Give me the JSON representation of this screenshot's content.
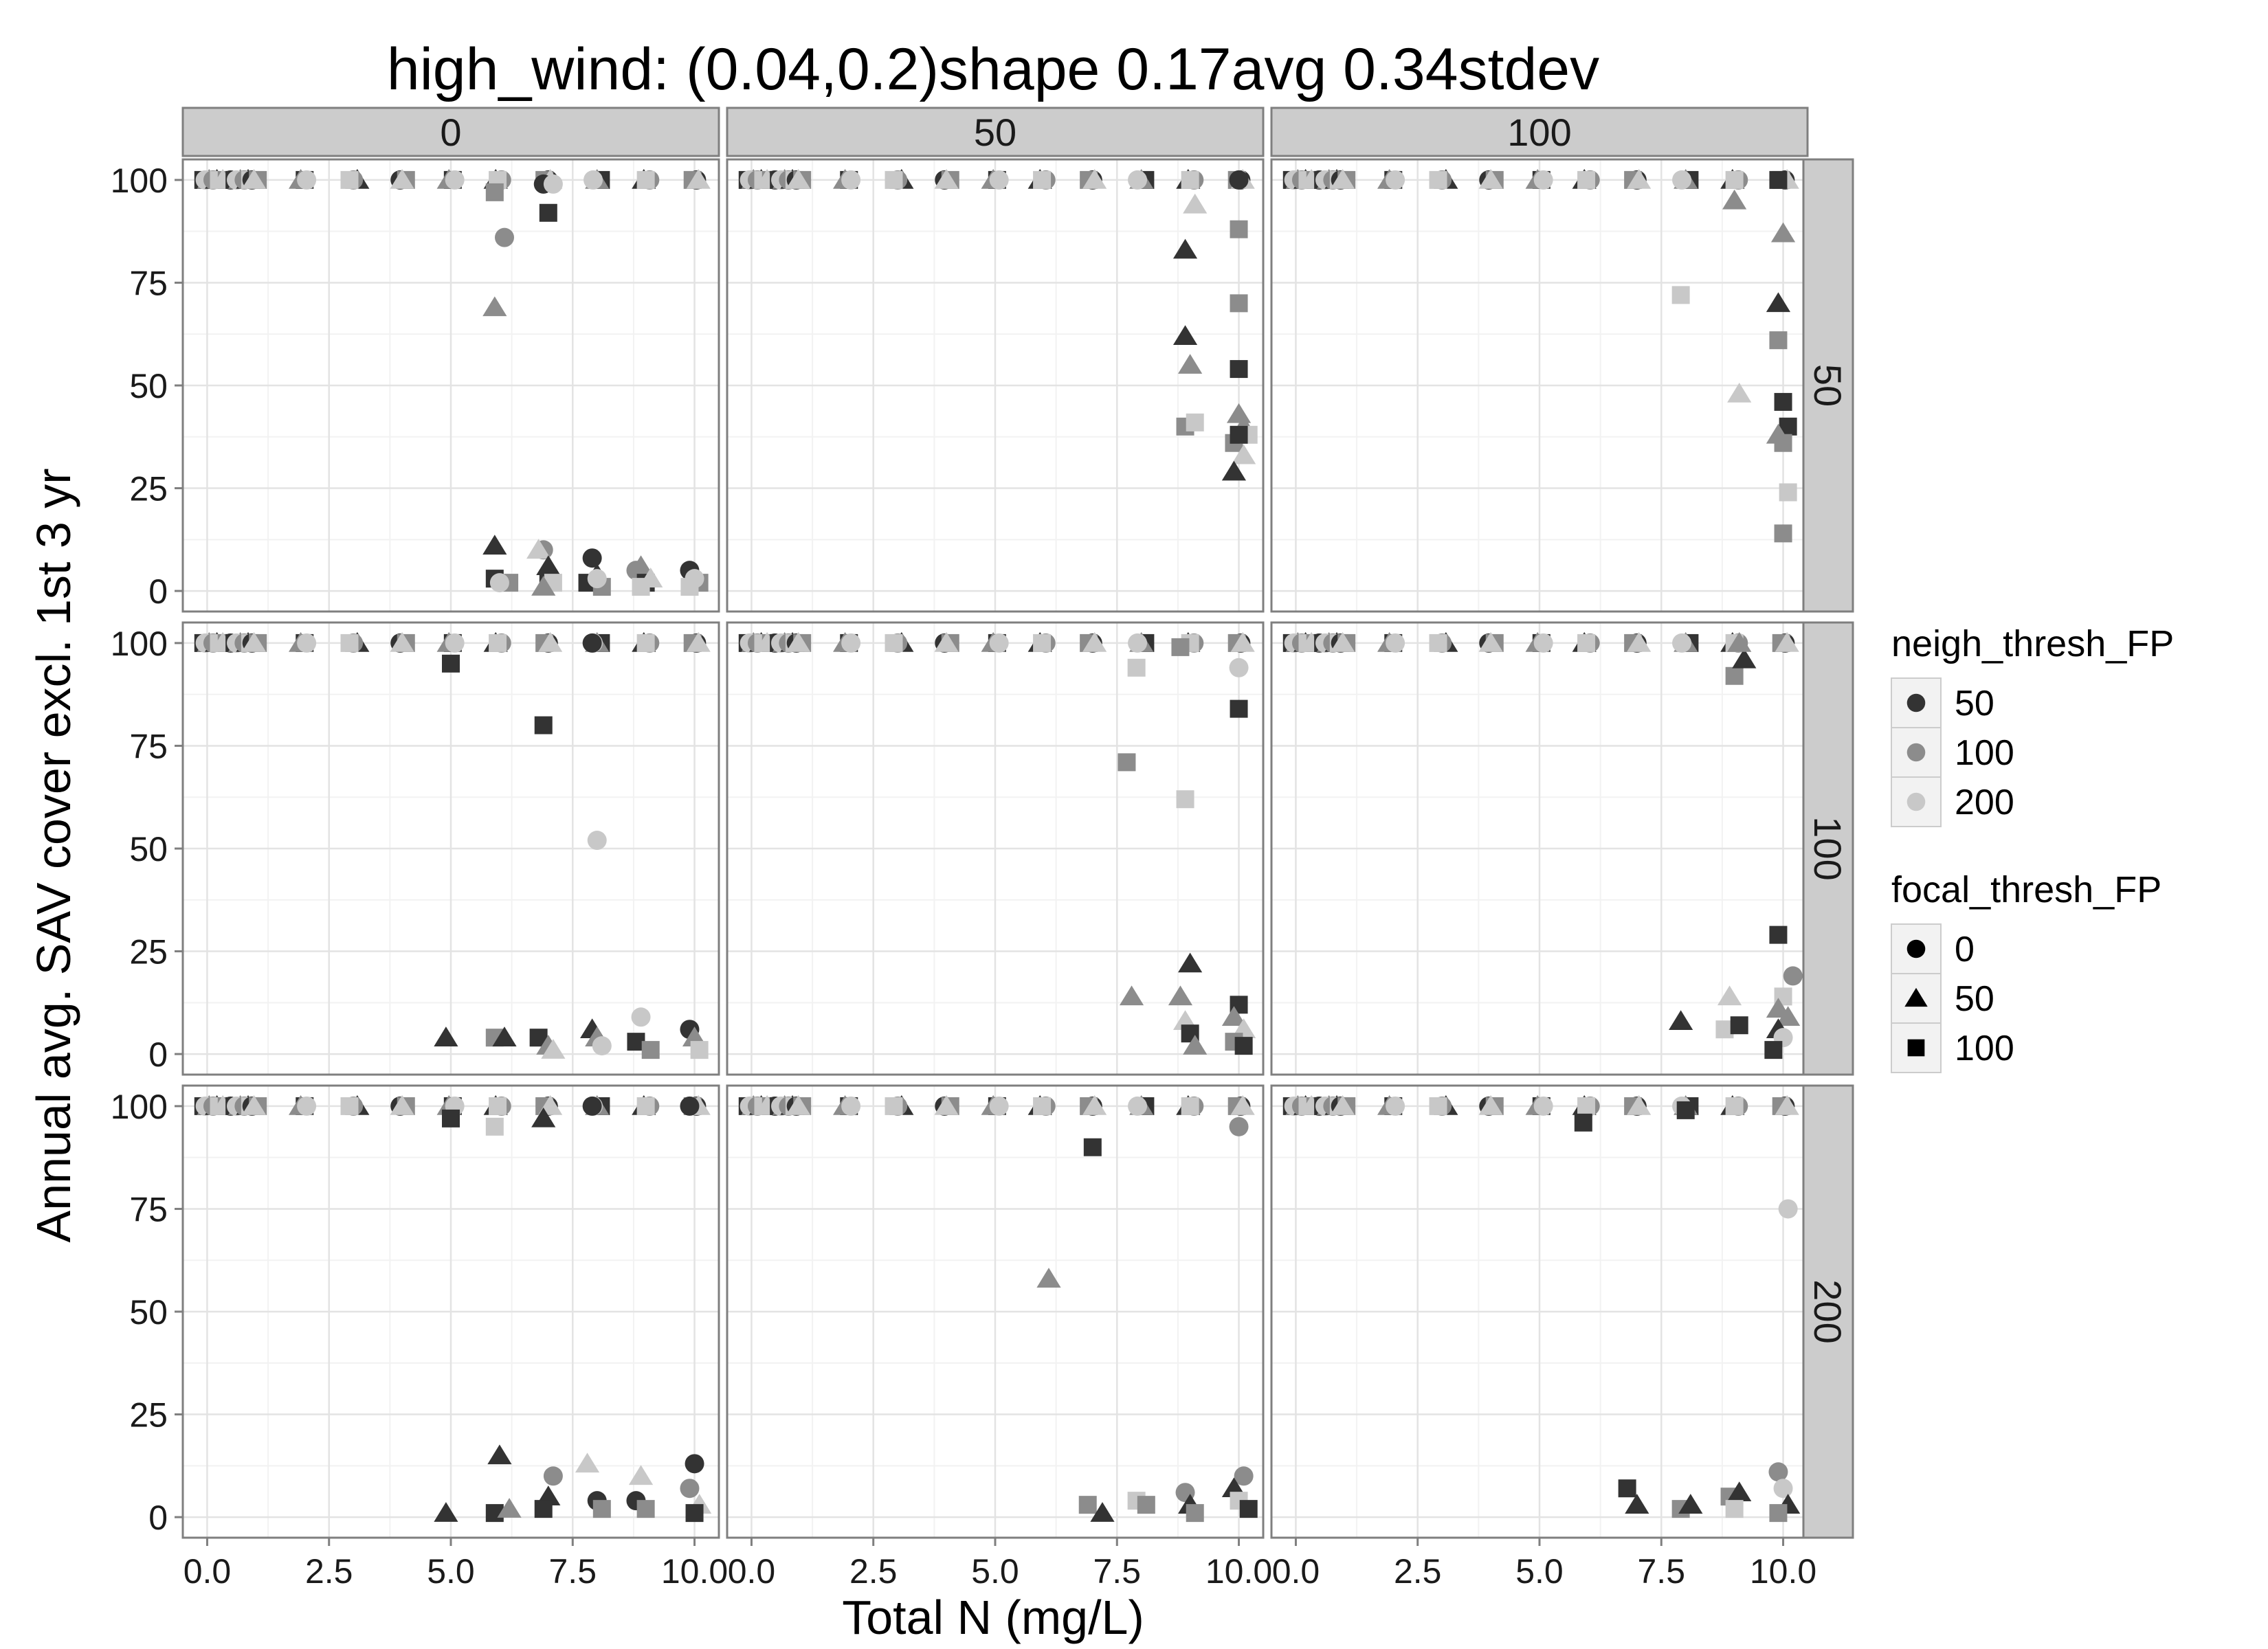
{
  "chart_data": {
    "type": "scatter",
    "title": "high_wind: (0.04,0.2)shape 0.17avg 0.34stdev",
    "xlabel": "Total N (mg/L)",
    "ylabel": "Annual avg. SAV cover excl. 1st 3 yr",
    "xlim": [
      -0.5,
      10.5
    ],
    "ylim": [
      -5,
      105
    ],
    "x_ticks": [
      0,
      2.5,
      5,
      7.5,
      10
    ],
    "x_tick_labels": [
      "0.0",
      "2.5",
      "5.0",
      "7.5",
      "10.0"
    ],
    "y_ticks": [
      0,
      25,
      50,
      75,
      100
    ],
    "y_tick_labels": [
      "0",
      "25",
      "50",
      "75",
      "100"
    ],
    "grid": true,
    "facet_cols": [
      "0",
      "50",
      "100"
    ],
    "facet_rows": [
      "50",
      "100",
      "200"
    ],
    "legends": [
      {
        "title": "neigh_thresh_FP",
        "items": [
          {
            "label": "50",
            "color": "#333333",
            "shape": "circle"
          },
          {
            "label": "100",
            "color": "#8c8c8c",
            "shape": "circle"
          },
          {
            "label": "200",
            "color": "#c8c8c8",
            "shape": "circle"
          }
        ]
      },
      {
        "title": "focal_thresh_FP",
        "items": [
          {
            "label": "0",
            "color": "#000000",
            "shape": "circle"
          },
          {
            "label": "50",
            "color": "#000000",
            "shape": "triangle"
          },
          {
            "label": "100",
            "color": "#000000",
            "shape": "square"
          }
        ]
      }
    ],
    "series_colors": {
      "n50": "#333333",
      "n100": "#8c8c8c",
      "n200": "#c8c8c8"
    },
    "baseline_x": [
      0,
      0.2,
      0.4,
      0.6,
      0.8,
      1,
      2,
      3,
      4,
      5,
      6,
      7,
      8,
      9,
      10
    ],
    "panels": [
      {
        "row": "50",
        "col": "0",
        "points": [
          [
            5.9,
            97,
            "n100",
            "square"
          ],
          [
            6.1,
            86,
            "n100",
            "circle"
          ],
          [
            5.9,
            69,
            "n100",
            "triangle"
          ],
          [
            7.0,
            92,
            "n50",
            "square"
          ],
          [
            6.9,
            99,
            "n50",
            "circle"
          ],
          [
            7.1,
            99,
            "n200",
            "circle"
          ],
          [
            5.9,
            11,
            "n50",
            "triangle"
          ],
          [
            5.9,
            3,
            "n50",
            "square"
          ],
          [
            6.2,
            2,
            "n100",
            "square"
          ],
          [
            6.0,
            2,
            "n200",
            "circle"
          ],
          [
            6.9,
            10,
            "n100",
            "circle"
          ],
          [
            6.8,
            10,
            "n200",
            "triangle"
          ],
          [
            7.0,
            6,
            "n50",
            "triangle"
          ],
          [
            7.0,
            3,
            "n50",
            "square"
          ],
          [
            7.1,
            2,
            "n200",
            "square"
          ],
          [
            6.9,
            1,
            "n100",
            "triangle"
          ],
          [
            7.9,
            8,
            "n50",
            "circle"
          ],
          [
            8.0,
            4,
            "n50",
            "triangle"
          ],
          [
            7.8,
            2,
            "n50",
            "square"
          ],
          [
            8.1,
            1,
            "n100",
            "square"
          ],
          [
            8.0,
            3,
            "n200",
            "circle"
          ],
          [
            8.9,
            6,
            "n100",
            "triangle"
          ],
          [
            8.8,
            5,
            "n100",
            "circle"
          ],
          [
            9.0,
            2,
            "n50",
            "square"
          ],
          [
            9.1,
            3,
            "n200",
            "triangle"
          ],
          [
            8.9,
            1,
            "n200",
            "square"
          ],
          [
            9.9,
            5,
            "n50",
            "circle"
          ],
          [
            10.0,
            4,
            "n50",
            "triangle"
          ],
          [
            10.1,
            2,
            "n100",
            "square"
          ],
          [
            9.9,
            1,
            "n200",
            "square"
          ],
          [
            10.0,
            3,
            "n200",
            "circle"
          ]
        ]
      },
      {
        "row": "50",
        "col": "50",
        "points": [
          [
            8.9,
            83,
            "n50",
            "triangle"
          ],
          [
            9.1,
            94,
            "n200",
            "triangle"
          ],
          [
            10.0,
            100,
            "n50",
            "circle"
          ],
          [
            10.0,
            88,
            "n100",
            "square"
          ],
          [
            10.0,
            70,
            "n100",
            "square"
          ],
          [
            8.9,
            62,
            "n50",
            "triangle"
          ],
          [
            9.0,
            55,
            "n100",
            "triangle"
          ],
          [
            10.0,
            54,
            "n50",
            "square"
          ],
          [
            8.9,
            40,
            "n100",
            "square"
          ],
          [
            9.1,
            41,
            "n200",
            "square"
          ],
          [
            10.0,
            43,
            "n100",
            "triangle"
          ],
          [
            10.1,
            40,
            "n100",
            "triangle"
          ],
          [
            9.9,
            36,
            "n100",
            "square"
          ],
          [
            10.2,
            38,
            "n200",
            "square"
          ],
          [
            10.1,
            33,
            "n200",
            "triangle"
          ],
          [
            9.9,
            29,
            "n50",
            "triangle"
          ],
          [
            10.0,
            38,
            "n50",
            "square"
          ]
        ]
      },
      {
        "row": "50",
        "col": "100",
        "points": [
          [
            9.0,
            95,
            "n100",
            "triangle"
          ],
          [
            9.9,
            100,
            "n50",
            "square"
          ],
          [
            10.0,
            87,
            "n100",
            "triangle"
          ],
          [
            7.9,
            72,
            "n200",
            "square"
          ],
          [
            9.9,
            70,
            "n50",
            "triangle"
          ],
          [
            9.9,
            61,
            "n100",
            "square"
          ],
          [
            9.1,
            48,
            "n200",
            "triangle"
          ],
          [
            10.0,
            46,
            "n50",
            "square"
          ],
          [
            10.1,
            40,
            "n50",
            "square"
          ],
          [
            9.9,
            38,
            "n100",
            "triangle"
          ],
          [
            10.0,
            36,
            "n100",
            "square"
          ],
          [
            10.1,
            24,
            "n200",
            "square"
          ],
          [
            10.0,
            14,
            "n100",
            "square"
          ]
        ]
      },
      {
        "row": "100",
        "col": "0",
        "points": [
          [
            5.0,
            95,
            "n50",
            "square"
          ],
          [
            6.9,
            80,
            "n50",
            "square"
          ],
          [
            8.0,
            52,
            "n200",
            "circle"
          ],
          [
            7.9,
            100,
            "n50",
            "circle"
          ],
          [
            4.9,
            4,
            "n50",
            "triangle"
          ],
          [
            5.9,
            4,
            "n100",
            "square"
          ],
          [
            6.1,
            4,
            "n50",
            "triangle"
          ],
          [
            6.8,
            4,
            "n50",
            "square"
          ],
          [
            7.0,
            2,
            "n100",
            "triangle"
          ],
          [
            7.1,
            1,
            "n200",
            "triangle"
          ],
          [
            7.9,
            6,
            "n50",
            "triangle"
          ],
          [
            8.0,
            4,
            "n100",
            "triangle"
          ],
          [
            8.1,
            2,
            "n200",
            "circle"
          ],
          [
            8.9,
            9,
            "n200",
            "circle"
          ],
          [
            8.8,
            3,
            "n50",
            "square"
          ],
          [
            9.1,
            1,
            "n100",
            "square"
          ],
          [
            9.9,
            6,
            "n50",
            "circle"
          ],
          [
            10.0,
            4,
            "n100",
            "triangle"
          ],
          [
            10.1,
            1,
            "n200",
            "square"
          ]
        ]
      },
      {
        "row": "100",
        "col": "50",
        "points": [
          [
            7.9,
            94,
            "n200",
            "square"
          ],
          [
            8.8,
            99,
            "n100",
            "square"
          ],
          [
            10.0,
            94,
            "n200",
            "circle"
          ],
          [
            10.0,
            84,
            "n50",
            "square"
          ],
          [
            7.7,
            71,
            "n100",
            "square"
          ],
          [
            8.9,
            62,
            "n200",
            "square"
          ],
          [
            7.8,
            14,
            "n100",
            "triangle"
          ],
          [
            9.0,
            22,
            "n50",
            "triangle"
          ],
          [
            8.8,
            14,
            "n100",
            "triangle"
          ],
          [
            8.9,
            8,
            "n200",
            "triangle"
          ],
          [
            9.0,
            5,
            "n50",
            "square"
          ],
          [
            9.1,
            2,
            "n100",
            "triangle"
          ],
          [
            10.0,
            12,
            "n50",
            "square"
          ],
          [
            9.9,
            9,
            "n100",
            "triangle"
          ],
          [
            10.1,
            6,
            "n200",
            "triangle"
          ],
          [
            9.9,
            3,
            "n100",
            "square"
          ],
          [
            10.1,
            2,
            "n50",
            "square"
          ]
        ]
      },
      {
        "row": "100",
        "col": "100",
        "points": [
          [
            9.0,
            92,
            "n100",
            "square"
          ],
          [
            9.2,
            96,
            "n50",
            "triangle"
          ],
          [
            9.1,
            100,
            "n100",
            "triangle"
          ],
          [
            9.9,
            29,
            "n50",
            "square"
          ],
          [
            10.2,
            19,
            "n100",
            "circle"
          ],
          [
            7.9,
            8,
            "n50",
            "triangle"
          ],
          [
            8.9,
            14,
            "n200",
            "triangle"
          ],
          [
            8.8,
            6,
            "n200",
            "square"
          ],
          [
            9.1,
            7,
            "n50",
            "square"
          ],
          [
            10.0,
            14,
            "n200",
            "square"
          ],
          [
            9.9,
            11,
            "n100",
            "triangle"
          ],
          [
            10.1,
            9,
            "n100",
            "triangle"
          ],
          [
            9.9,
            6,
            "n50",
            "triangle"
          ],
          [
            10.0,
            4,
            "n200",
            "circle"
          ],
          [
            9.8,
            1,
            "n50",
            "square"
          ]
        ]
      },
      {
        "row": "200",
        "col": "0",
        "points": [
          [
            5.0,
            97,
            "n50",
            "square"
          ],
          [
            5.9,
            95,
            "n200",
            "square"
          ],
          [
            6.9,
            97,
            "n50",
            "triangle"
          ],
          [
            7.9,
            100,
            "n50",
            "circle"
          ],
          [
            9.9,
            100,
            "n50",
            "circle"
          ],
          [
            4.9,
            1,
            "n50",
            "triangle"
          ],
          [
            6.0,
            15,
            "n50",
            "triangle"
          ],
          [
            5.9,
            1,
            "n50",
            "square"
          ],
          [
            6.2,
            2,
            "n100",
            "triangle"
          ],
          [
            7.1,
            10,
            "n100",
            "circle"
          ],
          [
            7.0,
            5,
            "n50",
            "triangle"
          ],
          [
            6.9,
            2,
            "n50",
            "square"
          ],
          [
            7.8,
            13,
            "n200",
            "triangle"
          ],
          [
            8.0,
            4,
            "n50",
            "circle"
          ],
          [
            8.1,
            2,
            "n100",
            "square"
          ],
          [
            8.9,
            10,
            "n200",
            "triangle"
          ],
          [
            8.8,
            4,
            "n50",
            "circle"
          ],
          [
            9.0,
            2,
            "n100",
            "square"
          ],
          [
            10.0,
            13,
            "n50",
            "circle"
          ],
          [
            9.9,
            7,
            "n100",
            "circle"
          ],
          [
            10.1,
            3,
            "n200",
            "triangle"
          ],
          [
            10.0,
            1,
            "n50",
            "square"
          ]
        ]
      },
      {
        "row": "200",
        "col": "50",
        "points": [
          [
            7.0,
            90,
            "n50",
            "square"
          ],
          [
            6.1,
            58,
            "n100",
            "triangle"
          ],
          [
            10.0,
            95,
            "n100",
            "circle"
          ],
          [
            6.9,
            3,
            "n100",
            "square"
          ],
          [
            7.2,
            1,
            "n50",
            "triangle"
          ],
          [
            7.9,
            4,
            "n200",
            "square"
          ],
          [
            8.1,
            3,
            "n100",
            "square"
          ],
          [
            8.9,
            6,
            "n100",
            "circle"
          ],
          [
            9.0,
            3,
            "n50",
            "triangle"
          ],
          [
            9.1,
            1,
            "n100",
            "square"
          ],
          [
            10.1,
            10,
            "n100",
            "circle"
          ],
          [
            9.9,
            7,
            "n50",
            "triangle"
          ],
          [
            10.0,
            4,
            "n200",
            "square"
          ],
          [
            10.2,
            2,
            "n50",
            "square"
          ]
        ]
      },
      {
        "row": "200",
        "col": "100",
        "points": [
          [
            5.9,
            96,
            "n50",
            "square"
          ],
          [
            8.0,
            99,
            "n50",
            "square"
          ],
          [
            10.1,
            75,
            "n200",
            "circle"
          ],
          [
            6.8,
            7,
            "n50",
            "square"
          ],
          [
            7.0,
            3,
            "n50",
            "triangle"
          ],
          [
            7.9,
            2,
            "n100",
            "square"
          ],
          [
            8.1,
            3,
            "n50",
            "triangle"
          ],
          [
            8.9,
            5,
            "n100",
            "square"
          ],
          [
            9.1,
            6,
            "n50",
            "triangle"
          ],
          [
            9.0,
            2,
            "n200",
            "square"
          ],
          [
            9.9,
            11,
            "n100",
            "circle"
          ],
          [
            10.0,
            7,
            "n200",
            "circle"
          ],
          [
            10.1,
            3,
            "n50",
            "triangle"
          ],
          [
            9.9,
            1,
            "n100",
            "square"
          ]
        ]
      }
    ]
  }
}
